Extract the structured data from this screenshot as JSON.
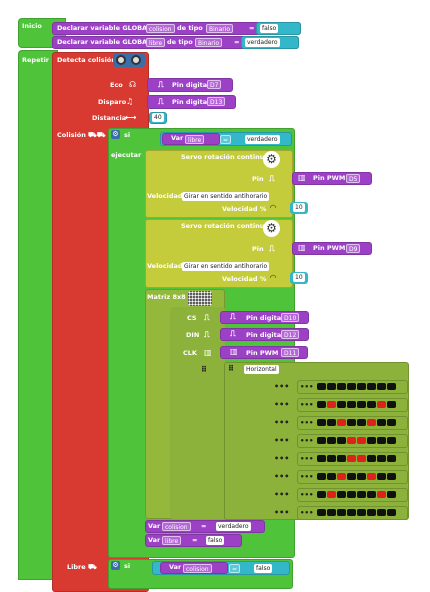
{
  "colors": {
    "green": "#4fc43b",
    "red": "#d83a32",
    "purple": "#9c41c6",
    "cyan": "#33b7c9",
    "olive": "#c5cc3c",
    "oliveDark": "#9fa62a",
    "darkOlive": "#94b83c",
    "matrixGreen": "#8cb23b"
  },
  "root": {
    "inicio": "Inicio",
    "repetir": "Repetir"
  },
  "decl1": {
    "label": "Declarar variable GLOBAL",
    "name": "colision",
    "tipo": "de tipo",
    "type": "Binario",
    "eq": "=",
    "value": "falso"
  },
  "decl2": {
    "label": "Declarar variable GLOBAL",
    "name": "libre",
    "tipo": "de tipo",
    "type": "Binario",
    "eq": "=",
    "value": "verdadero"
  },
  "detect": {
    "label": "Detecta colisión",
    "eco": "Eco",
    "disparo": "Disparo",
    "distancia": "Distancia",
    "pin_label": "Pin digital",
    "eco_pin": "D7",
    "disparo_pin": "D13",
    "dist_value": "40"
  },
  "colision": {
    "label": "Colisión",
    "si": "si",
    "ejecutar": "ejecutar",
    "var": "Var",
    "varname": "libre",
    "eq": "=",
    "value": "verdadero"
  },
  "servo1": {
    "title": "Servo rotación continua",
    "pin": "Pin",
    "pwm": "Pin PWM",
    "pwm_value": "D5",
    "velocidad": "Velocidad",
    "direction": "Girar en sentido antihorario",
    "vel_pct": "Velocidad %",
    "vel_value": "10"
  },
  "servo2": {
    "title": "Servo rotación continua",
    "pin": "Pin",
    "pwm": "Pin PWM",
    "pwm_value": "D9",
    "velocidad": "Velocidad",
    "direction": "Girar en sentido antihorario",
    "vel_pct": "Velocidad %",
    "vel_value": "10"
  },
  "matrix": {
    "title": "Matriz 8x8",
    "cs": "CS",
    "din": "DIN",
    "clk": "CLK",
    "pin_digital": "Pin digital",
    "pin_pwm": "Pin PWM",
    "cs_pin": "D10",
    "din_pin": "D12",
    "clk_pin": "D11",
    "orientation": "Horizontal",
    "rows": [
      [
        0,
        0,
        0,
        0,
        0,
        0,
        0,
        0
      ],
      [
        0,
        1,
        0,
        0,
        0,
        0,
        1,
        0
      ],
      [
        0,
        0,
        1,
        0,
        0,
        1,
        0,
        0
      ],
      [
        0,
        0,
        0,
        1,
        1,
        0,
        0,
        0
      ],
      [
        0,
        0,
        0,
        1,
        1,
        0,
        0,
        0
      ],
      [
        0,
        0,
        1,
        0,
        0,
        1,
        0,
        0
      ],
      [
        0,
        1,
        0,
        0,
        0,
        0,
        1,
        0
      ],
      [
        0,
        0,
        0,
        0,
        0,
        0,
        0,
        0
      ]
    ]
  },
  "after": {
    "var": "Var",
    "v1": "colision",
    "v1val": "verdadero",
    "v2": "libre",
    "v2val": "falso",
    "eq": "="
  },
  "libre": {
    "label": "Libre",
    "si": "si",
    "var": "Var",
    "varname": "colision",
    "eq": "=",
    "value": "falso"
  }
}
